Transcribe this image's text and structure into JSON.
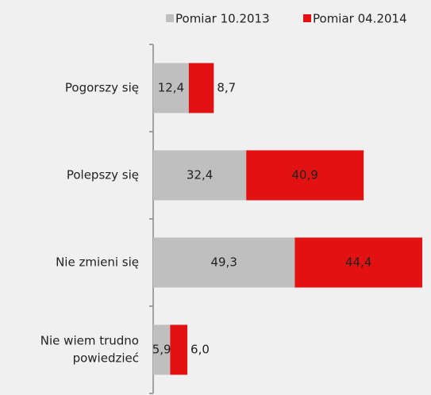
{
  "chart_data": {
    "type": "stacked_bar_horizontal",
    "categories": [
      [
        "Pogorszy się"
      ],
      [
        "Polepszy się"
      ],
      [
        "Nie zmieni się"
      ],
      [
        "Nie wiem trudno",
        "powiedzieć"
      ]
    ],
    "series": [
      {
        "name": "Pomiar 10.2013",
        "color": "#bfbfbf",
        "values": [
          12.4,
          32.4,
          49.3,
          5.9
        ],
        "value_labels": [
          "12,4",
          "32,4",
          "49,3",
          "5,9"
        ]
      },
      {
        "name": "Pomiar 04.2014",
        "color": "#e31212",
        "values": [
          8.7,
          40.9,
          44.4,
          6.0
        ],
        "value_labels": [
          "8,7",
          "40,9",
          "44,4",
          "6,0"
        ]
      }
    ]
  }
}
